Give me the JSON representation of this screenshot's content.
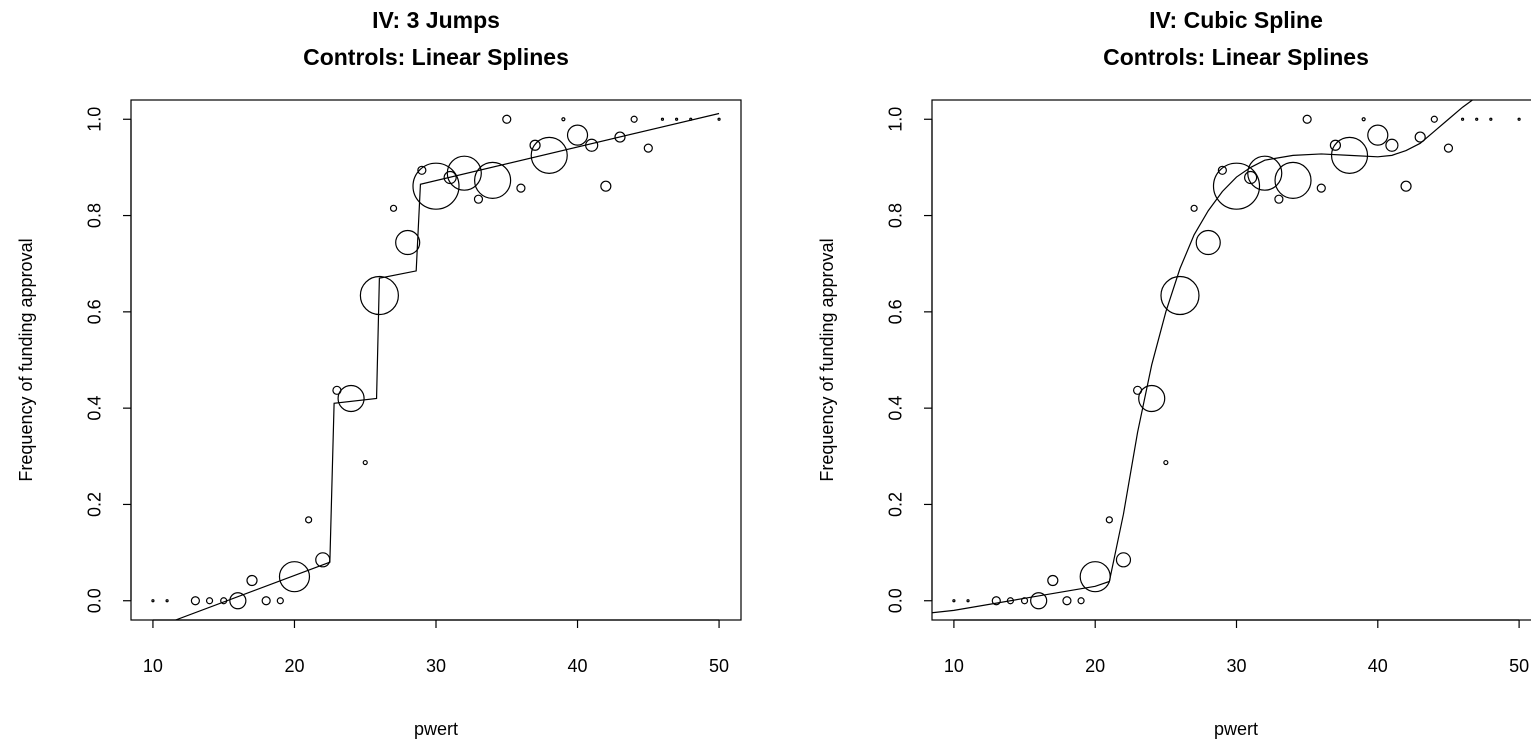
{
  "chart_data": [
    {
      "type": "scatter",
      "title": "IV: 3 Jumps",
      "subtitle": "Controls: Linear Splines",
      "xlabel": "pwert",
      "ylabel": "Frequency of funding approval",
      "xlim": [
        8.45,
        51.55
      ],
      "ylim": [
        -0.04,
        1.04
      ],
      "xticks": [
        10,
        20,
        30,
        40,
        50
      ],
      "yticks": [
        {
          "value": 0,
          "label": "0.0"
        },
        0.2,
        0.4,
        0.6,
        0.8,
        {
          "value": 1,
          "label": "1.0"
        }
      ],
      "x": [
        10,
        11,
        13,
        14,
        15,
        16,
        17,
        18,
        19,
        20,
        21,
        22,
        23,
        24,
        25,
        26,
        27,
        28,
        29,
        30,
        31,
        32,
        33,
        34,
        35,
        36,
        37,
        38,
        39,
        40,
        41,
        42,
        43,
        44,
        45,
        46,
        47,
        48,
        50
      ],
      "y": [
        0,
        0,
        0,
        0,
        0,
        0,
        0.042,
        0,
        0,
        0.05,
        0.168,
        0.085,
        0.437,
        0.42,
        0.287,
        0.634,
        0.815,
        0.744,
        0.894,
        0.861,
        0.879,
        0.888,
        0.834,
        0.873,
        1,
        0.857,
        0.946,
        0.925,
        1,
        0.967,
        0.946,
        0.861,
        0.963,
        1,
        0.94,
        1,
        1,
        1,
        1
      ],
      "sizes": [
        1,
        1,
        4,
        3,
        3,
        8,
        5,
        4,
        3,
        15,
        3,
        7,
        4,
        13,
        2,
        19,
        3,
        12,
        4,
        23,
        6,
        17,
        4,
        18,
        4,
        4,
        5,
        18,
        1.5,
        10,
        6,
        5,
        5,
        3,
        4,
        1,
        1,
        1,
        1
      ],
      "fit": {
        "x": [
          11.6,
          22.5,
          22.8,
          25.8,
          26.0,
          28.6,
          28.9,
          50
        ],
        "y": [
          -0.04,
          0.08,
          0.41,
          0.42,
          0.67,
          0.685,
          0.865,
          1.012
        ]
      }
    },
    {
      "type": "scatter",
      "title": "IV: Cubic Spline",
      "subtitle": "Controls: Linear Splines",
      "xlabel": "pwert",
      "ylabel": "Frequency of funding approval",
      "xlim": [
        8.45,
        51.55
      ],
      "ylim": [
        -0.04,
        1.04
      ],
      "xticks": [
        10,
        20,
        30,
        40,
        50
      ],
      "yticks": [
        {
          "value": 0,
          "label": "0.0"
        },
        0.2,
        0.4,
        0.6,
        0.8,
        {
          "value": 1,
          "label": "1.0"
        }
      ],
      "x": [
        10,
        11,
        13,
        14,
        15,
        16,
        17,
        18,
        19,
        20,
        21,
        22,
        23,
        24,
        25,
        26,
        27,
        28,
        29,
        30,
        31,
        32,
        33,
        34,
        35,
        36,
        37,
        38,
        39,
        40,
        41,
        42,
        43,
        44,
        45,
        46,
        47,
        48,
        50
      ],
      "y": [
        0,
        0,
        0,
        0,
        0,
        0,
        0.042,
        0,
        0,
        0.05,
        0.168,
        0.085,
        0.437,
        0.42,
        0.287,
        0.634,
        0.815,
        0.744,
        0.894,
        0.861,
        0.879,
        0.888,
        0.834,
        0.873,
        1,
        0.857,
        0.946,
        0.925,
        1,
        0.967,
        0.946,
        0.861,
        0.963,
        1,
        0.94,
        1,
        1,
        1,
        1
      ],
      "sizes": [
        1,
        1,
        4,
        3,
        3,
        8,
        5,
        4,
        3,
        15,
        3,
        7,
        4,
        13,
        2,
        19,
        3,
        12,
        4,
        23,
        6,
        17,
        4,
        18,
        4,
        4,
        5,
        18,
        1.5,
        10,
        6,
        5,
        5,
        3,
        4,
        1,
        1,
        1,
        1
      ],
      "fit": {
        "x": [
          8.45,
          10,
          15,
          20,
          21,
          22,
          23,
          24,
          25,
          26,
          27,
          28,
          29,
          30,
          31,
          32,
          34,
          36,
          38,
          40,
          41,
          42,
          43,
          44,
          45,
          46,
          46.7
        ],
        "y": [
          -0.025,
          -0.02,
          0.005,
          0.03,
          0.04,
          0.18,
          0.35,
          0.49,
          0.6,
          0.69,
          0.76,
          0.81,
          0.85,
          0.88,
          0.9,
          0.915,
          0.925,
          0.928,
          0.925,
          0.922,
          0.925,
          0.935,
          0.95,
          0.975,
          1.0,
          1.025,
          1.04
        ]
      }
    }
  ]
}
